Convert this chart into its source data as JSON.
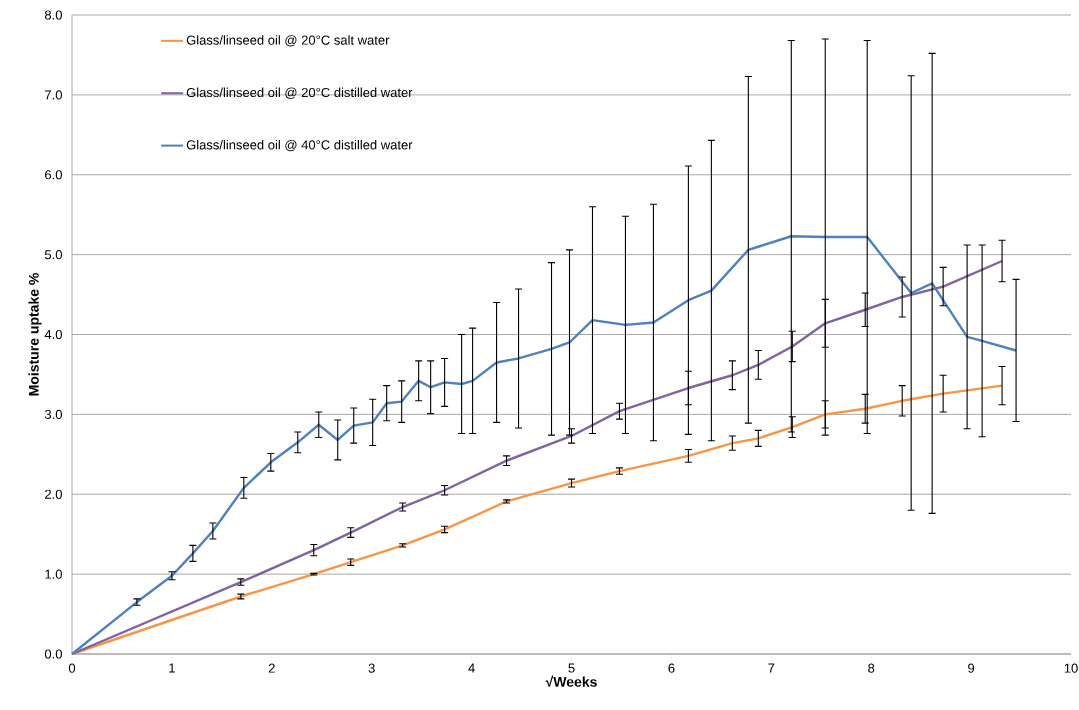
{
  "chart_data": {
    "type": "line",
    "xlabel": "√Weeks",
    "ylabel": "Moisture uptake %",
    "xlim": [
      0,
      10
    ],
    "xticks": [
      0,
      1,
      2,
      3,
      4,
      5,
      6,
      7,
      8,
      9,
      10
    ],
    "ylim": [
      0,
      8
    ],
    "yticks": [
      {
        "value": 0,
        "label": "0.0"
      },
      {
        "value": 1,
        "label": "1.0"
      },
      {
        "value": 2,
        "label": "2.0"
      },
      {
        "value": 3,
        "label": "3.0"
      },
      {
        "value": 4,
        "label": "4.0"
      },
      {
        "value": 5,
        "label": "5.0"
      },
      {
        "value": 6,
        "label": "6.0"
      },
      {
        "value": 7,
        "label": "7.0"
      },
      {
        "value": 8,
        "label": "8.0"
      }
    ],
    "grid": "y",
    "legend": "top left",
    "marker": "none",
    "line_style": "solid",
    "series": [
      {
        "name": "Glass/linseed oil @ 20°C salt water",
        "color": "#f79646",
        "x": [
          0,
          1.69,
          2.42,
          2.79,
          3.31,
          3.73,
          4.35,
          5.0,
          5.48,
          6.17,
          6.61,
          6.87,
          7.21,
          7.54,
          7.94,
          8.31,
          8.72,
          9.31
        ],
        "values": [
          0,
          0.72,
          1.0,
          1.15,
          1.36,
          1.56,
          1.91,
          2.14,
          2.29,
          2.48,
          2.64,
          2.7,
          2.84,
          3.0,
          3.07,
          3.17,
          3.26,
          3.36
        ],
        "errors": [
          null,
          0.03,
          0.01,
          0.04,
          0.02,
          0.04,
          0.02,
          0.05,
          0.04,
          0.08,
          0.09,
          0.1,
          0.13,
          0.17,
          0.18,
          0.19,
          0.23,
          0.24
        ]
      },
      {
        "name": "Glass/linseed oil @ 20°C distilled water",
        "color": "#8064a2",
        "x": [
          0,
          1.69,
          2.42,
          2.79,
          3.31,
          3.73,
          4.35,
          5.0,
          5.48,
          6.17,
          6.61,
          6.87,
          7.21,
          7.54,
          7.94,
          8.31,
          8.72,
          9.31
        ],
        "values": [
          0,
          0.9,
          1.3,
          1.52,
          1.84,
          2.05,
          2.42,
          2.73,
          3.04,
          3.33,
          3.49,
          3.62,
          3.85,
          4.14,
          4.31,
          4.47,
          4.6,
          4.92
        ],
        "errors": [
          null,
          0.04,
          0.07,
          0.06,
          0.05,
          0.06,
          0.06,
          0.09,
          0.1,
          0.21,
          0.18,
          0.18,
          0.19,
          0.3,
          0.21,
          0.25,
          0.24,
          0.26
        ]
      },
      {
        "name": "Glass/linseed oil @ 40°C distilled water",
        "color": "#4f81bd",
        "x": [
          0,
          0.65,
          1.0,
          1.21,
          1.41,
          1.72,
          1.99,
          2.26,
          2.47,
          2.66,
          2.82,
          3.01,
          3.15,
          3.3,
          3.47,
          3.59,
          3.73,
          3.9,
          4.01,
          4.25,
          4.47,
          4.8,
          4.98,
          5.21,
          5.54,
          5.82,
          6.17,
          6.4,
          6.77,
          7.2,
          7.54,
          7.96,
          8.4,
          8.61,
          8.96,
          9.11,
          9.45
        ],
        "values": [
          0,
          0.65,
          0.98,
          1.26,
          1.54,
          2.08,
          2.4,
          2.65,
          2.87,
          2.68,
          2.86,
          2.9,
          3.14,
          3.16,
          3.42,
          3.34,
          3.4,
          3.38,
          3.42,
          3.65,
          3.7,
          3.82,
          3.9,
          4.18,
          4.12,
          4.15,
          4.43,
          4.55,
          5.06,
          5.23,
          5.22,
          5.22,
          4.52,
          4.64,
          3.97,
          3.92,
          3.8
        ],
        "errors": [
          null,
          0.04,
          0.05,
          0.1,
          0.1,
          0.13,
          0.11,
          0.13,
          0.16,
          0.25,
          0.22,
          0.29,
          0.22,
          0.26,
          0.25,
          0.33,
          0.3,
          0.62,
          0.66,
          0.75,
          0.87,
          1.08,
          1.16,
          1.42,
          1.36,
          1.48,
          1.68,
          1.88,
          2.17,
          2.45,
          2.48,
          2.46,
          2.72,
          2.88,
          1.15,
          1.2,
          0.89
        ]
      }
    ]
  }
}
